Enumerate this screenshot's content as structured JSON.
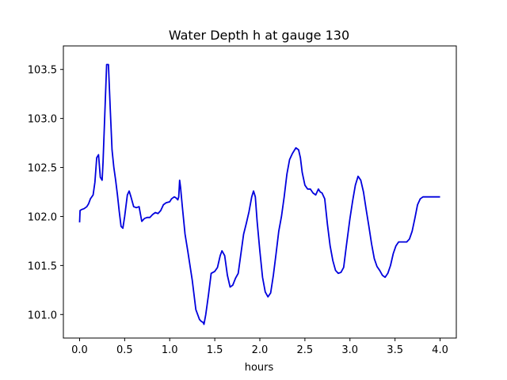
{
  "chart_data": {
    "type": "line",
    "title": "Water Depth h at gauge 130",
    "xlabel": "hours",
    "ylabel": "",
    "xlim": [
      -0.18,
      4.18
    ],
    "ylim": [
      100.76,
      103.74
    ],
    "x_ticks": [
      0.0,
      0.5,
      1.0,
      1.5,
      2.0,
      2.5,
      3.0,
      3.5,
      4.0
    ],
    "x_tick_labels": [
      "0.0",
      "0.5",
      "1.0",
      "1.5",
      "2.0",
      "2.5",
      "3.0",
      "3.5",
      "4.0"
    ],
    "y_ticks": [
      101.0,
      101.5,
      102.0,
      102.5,
      103.0,
      103.5
    ],
    "y_tick_labels": [
      "101.0",
      "101.5",
      "102.0",
      "102.5",
      "103.0",
      "103.5"
    ],
    "grid": false,
    "legend": "none",
    "line_color": "#0000dd",
    "series": [
      {
        "x": [
          0.0,
          0.005,
          0.02,
          0.05,
          0.08,
          0.1,
          0.12,
          0.15,
          0.17,
          0.19,
          0.21,
          0.23,
          0.25,
          0.26,
          0.28,
          0.3,
          0.32,
          0.34,
          0.36,
          0.38,
          0.4,
          0.42,
          0.44,
          0.46,
          0.48,
          0.5,
          0.53,
          0.55,
          0.57,
          0.6,
          0.63,
          0.66,
          0.69,
          0.72,
          0.75,
          0.78,
          0.81,
          0.84,
          0.87,
          0.9,
          0.93,
          0.96,
          1.0,
          1.02,
          1.05,
          1.07,
          1.09,
          1.1,
          1.11,
          1.12,
          1.14,
          1.17,
          1.2,
          1.25,
          1.29,
          1.33,
          1.35,
          1.37,
          1.38,
          1.4,
          1.43,
          1.46,
          1.5,
          1.53,
          1.56,
          1.58,
          1.61,
          1.64,
          1.67,
          1.7,
          1.73,
          1.76,
          1.79,
          1.82,
          1.85,
          1.88,
          1.91,
          1.93,
          1.95,
          1.97,
          2.0,
          2.03,
          2.06,
          2.09,
          2.12,
          2.15,
          2.18,
          2.21,
          2.24,
          2.27,
          2.3,
          2.33,
          2.36,
          2.4,
          2.43,
          2.45,
          2.47,
          2.5,
          2.53,
          2.56,
          2.59,
          2.62,
          2.65,
          2.67,
          2.69,
          2.72,
          2.75,
          2.78,
          2.81,
          2.84,
          2.87,
          2.9,
          2.93,
          2.96,
          3.0,
          3.03,
          3.06,
          3.09,
          3.12,
          3.15,
          3.18,
          3.21,
          3.24,
          3.27,
          3.3,
          3.33,
          3.36,
          3.39,
          3.42,
          3.45,
          3.48,
          3.51,
          3.54,
          3.57,
          3.6,
          3.63,
          3.66,
          3.69,
          3.72,
          3.75,
          3.78,
          3.81,
          3.84,
          3.87,
          3.9,
          3.93,
          3.96,
          4.0
        ],
        "y": [
          101.94,
          102.06,
          102.07,
          102.08,
          102.1,
          102.13,
          102.18,
          102.22,
          102.35,
          102.6,
          102.63,
          102.4,
          102.37,
          102.55,
          103.05,
          103.55,
          103.55,
          103.1,
          102.68,
          102.5,
          102.37,
          102.22,
          102.05,
          101.9,
          101.88,
          102.0,
          102.22,
          102.26,
          102.2,
          102.1,
          102.09,
          102.1,
          101.95,
          101.98,
          101.99,
          101.99,
          102.02,
          102.04,
          102.03,
          102.06,
          102.12,
          102.14,
          102.15,
          102.18,
          102.2,
          102.19,
          102.17,
          102.2,
          102.37,
          102.3,
          102.1,
          101.82,
          101.65,
          101.35,
          101.05,
          100.95,
          100.93,
          100.92,
          100.9,
          101.0,
          101.2,
          101.42,
          101.44,
          101.48,
          101.6,
          101.65,
          101.6,
          101.4,
          101.28,
          101.3,
          101.37,
          101.42,
          101.62,
          101.82,
          101.93,
          102.05,
          102.2,
          102.26,
          102.2,
          101.95,
          101.65,
          101.38,
          101.23,
          101.18,
          101.22,
          101.4,
          101.62,
          101.85,
          102.0,
          102.2,
          102.43,
          102.58,
          102.64,
          102.7,
          102.68,
          102.6,
          102.45,
          102.32,
          102.28,
          102.28,
          102.24,
          102.22,
          102.28,
          102.25,
          102.24,
          102.18,
          101.92,
          101.7,
          101.55,
          101.45,
          101.42,
          101.43,
          101.48,
          101.7,
          101.98,
          102.16,
          102.32,
          102.41,
          102.37,
          102.25,
          102.07,
          101.9,
          101.72,
          101.57,
          101.49,
          101.45,
          101.4,
          101.38,
          101.42,
          101.5,
          101.62,
          101.7,
          101.74,
          101.74,
          101.74,
          101.74,
          101.77,
          101.85,
          101.98,
          102.12,
          102.18,
          102.2,
          102.2,
          102.2,
          102.2,
          102.2,
          102.2,
          102.2
        ]
      }
    ]
  }
}
